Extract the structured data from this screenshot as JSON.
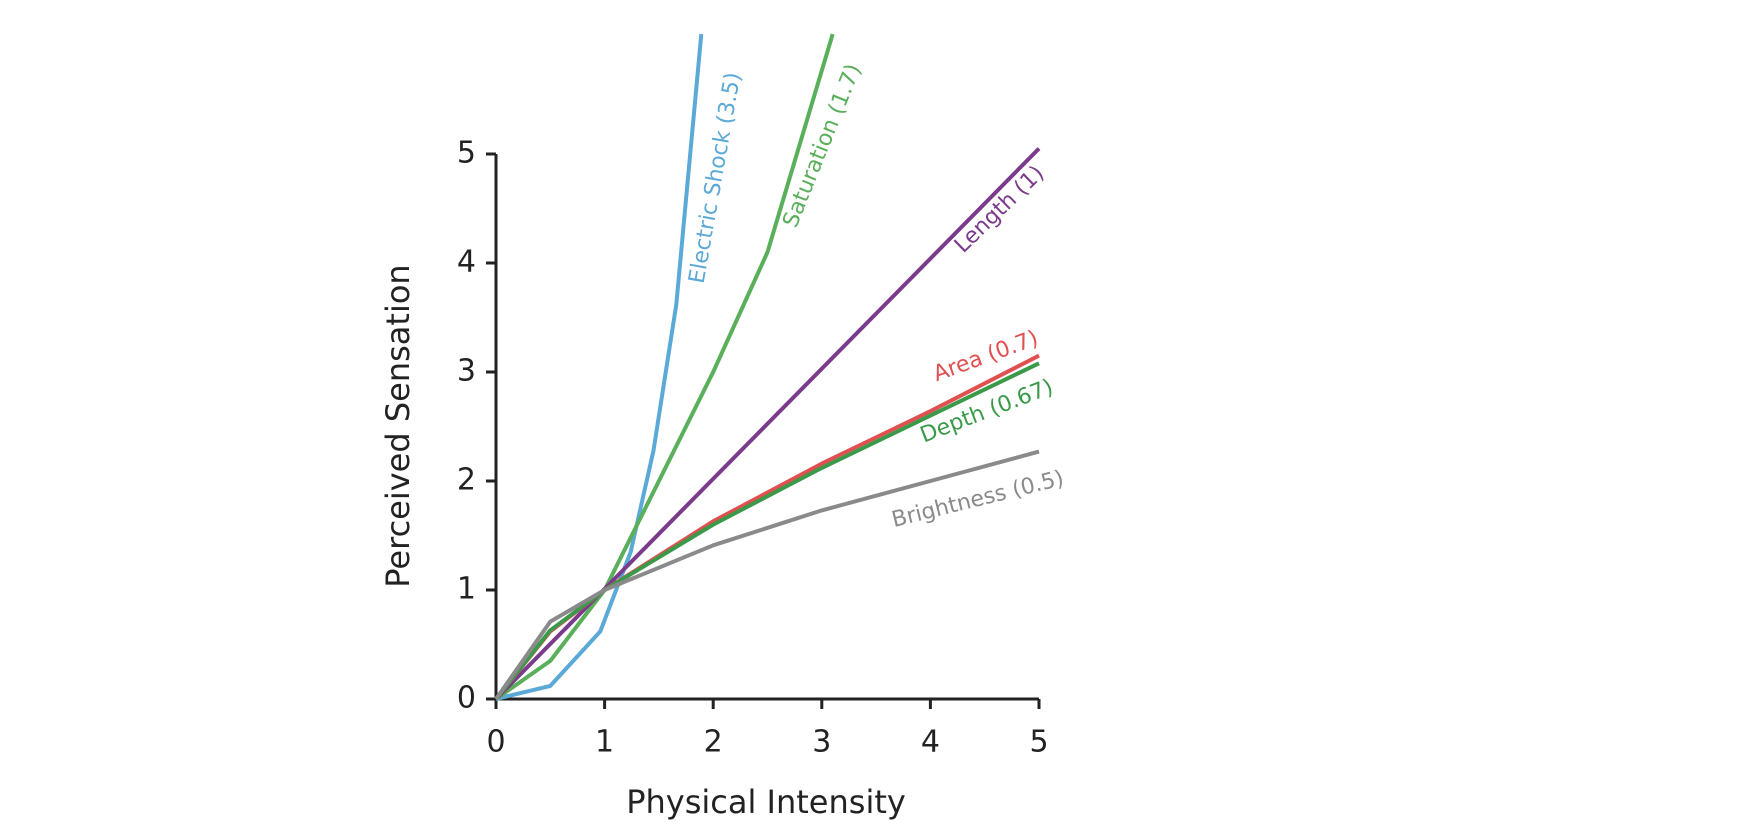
{
  "chart_data": {
    "type": "line",
    "xlabel": "Physical Intensity",
    "ylabel": "Perceived Sensation",
    "xlim": [
      0,
      5
    ],
    "ylim": [
      0,
      5
    ],
    "xticks": [
      0,
      1,
      2,
      3,
      4,
      5
    ],
    "yticks": [
      0,
      1,
      2,
      3,
      4,
      5
    ],
    "series": [
      {
        "name": "Electric Shock (3.5)",
        "color": "#5aa9d6",
        "x": [
          0,
          0.5,
          0.96,
          1.24,
          1.45,
          1.66,
          1.89
        ],
        "values": [
          0,
          0.12,
          0.62,
          1.35,
          2.28,
          3.62,
          6.1
        ]
      },
      {
        "name": "Saturation (1.7)",
        "color": "#5aaf5a",
        "x": [
          0,
          0.5,
          1,
          1.5,
          2,
          2.5,
          3.1
        ],
        "values": [
          0,
          0.35,
          1,
          2,
          3,
          4.1,
          6.1
        ]
      },
      {
        "name": "Length (1)",
        "color": "#7b3b8c",
        "x": [
          0,
          5
        ],
        "values": [
          0,
          5.05
        ]
      },
      {
        "name": "Area (0.7)",
        "color": "#e05050",
        "x": [
          0,
          0.5,
          1,
          2,
          3,
          4,
          5
        ],
        "values": [
          0,
          0.62,
          1,
          1.63,
          2.16,
          2.64,
          3.15
        ]
      },
      {
        "name": "Depth (0.67)",
        "color": "#3a9a4a",
        "x": [
          0,
          0.5,
          1,
          2,
          3,
          4,
          5
        ],
        "values": [
          0,
          0.63,
          1,
          1.6,
          2.12,
          2.6,
          3.08
        ]
      },
      {
        "name": "Brightness (0.5)",
        "color": "#8a8a8a",
        "x": [
          0,
          0.5,
          1,
          2,
          3,
          4,
          5
        ],
        "values": [
          0,
          0.71,
          1,
          1.41,
          1.73,
          2,
          2.27
        ]
      }
    ]
  }
}
